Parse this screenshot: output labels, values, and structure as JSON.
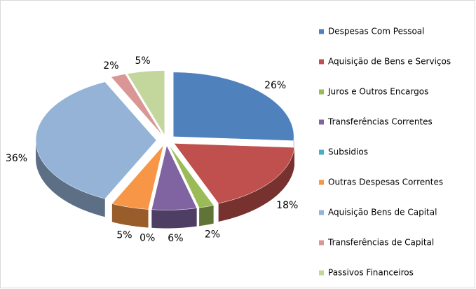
{
  "chart_data": {
    "type": "pie",
    "categories": [
      "Despesas Com Pessoal",
      "Aquisição de Bens e Serviços",
      "Juros e Outros Encargos",
      "Transferências Correntes",
      "Subsidios",
      "Outras Despesas Correntes",
      "Aquisição Bens de Capital",
      "Transferências de Capital",
      "Passivos Financeiros"
    ],
    "values": [
      26,
      18,
      2,
      6,
      0,
      5,
      36,
      2,
      5
    ],
    "value_labels": [
      "26%",
      "18%",
      "2%",
      "6%",
      "0%",
      "5%",
      "36%",
      "2%",
      "5%"
    ],
    "colors": [
      "#4f81bd",
      "#c0504d",
      "#9bbb59",
      "#8064a2",
      "#4bacc6",
      "#f79646",
      "#95b3d7",
      "#d99694",
      "#c3d69b"
    ],
    "legend": "right"
  }
}
